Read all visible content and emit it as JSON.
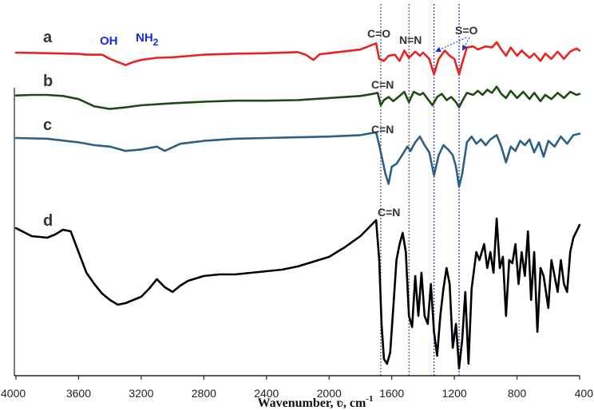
{
  "chart_data": {
    "type": "line",
    "title": "",
    "xlabel": "Wavenumber, ʋ, cm",
    "xlabel_sup": "-1",
    "ylabel": "",
    "xlim": [
      4000,
      400
    ],
    "x_reversed": true,
    "xticks": [
      4000,
      3600,
      3200,
      2800,
      2400,
      2000,
      1600,
      1200,
      800,
      400
    ],
    "grid": false,
    "legend": "none",
    "series": [
      {
        "name": "a",
        "color": "#e8231f",
        "points": [
          [
            4000,
            0.0
          ],
          [
            3800,
            -0.05
          ],
          [
            3600,
            -0.12
          ],
          [
            3550,
            -0.2
          ],
          [
            3450,
            -0.2
          ],
          [
            3400,
            -0.6
          ],
          [
            3300,
            -1.2
          ],
          [
            3250,
            -0.9
          ],
          [
            3200,
            -0.7
          ],
          [
            3100,
            -0.5
          ],
          [
            3000,
            -0.45
          ],
          [
            2800,
            -0.2
          ],
          [
            2600,
            -0.1
          ],
          [
            2400,
            -0.05
          ],
          [
            2200,
            0.05
          ],
          [
            2150,
            -0.2
          ],
          [
            2100,
            -0.7
          ],
          [
            2060,
            -0.15
          ],
          [
            2000,
            -0.05
          ],
          [
            1800,
            0.3
          ],
          [
            1750,
            0.6
          ],
          [
            1700,
            0.9
          ],
          [
            1680,
            -0.6
          ],
          [
            1650,
            -0.8
          ],
          [
            1620,
            -0.3
          ],
          [
            1580,
            -0.2
          ],
          [
            1550,
            -0.8
          ],
          [
            1520,
            0.2
          ],
          [
            1490,
            -0.5
          ],
          [
            1450,
            0.1
          ],
          [
            1420,
            -0.3
          ],
          [
            1400,
            0.0
          ],
          [
            1360,
            -0.6
          ],
          [
            1330,
            -2.1
          ],
          [
            1300,
            -0.6
          ],
          [
            1260,
            0.2
          ],
          [
            1230,
            -0.3
          ],
          [
            1200,
            -0.6
          ],
          [
            1170,
            -2.1
          ],
          [
            1150,
            -1.0
          ],
          [
            1120,
            0.5
          ],
          [
            1080,
            0.6
          ],
          [
            1050,
            0.3
          ],
          [
            1000,
            0.6
          ],
          [
            960,
            0.5
          ],
          [
            930,
            1.0
          ],
          [
            900,
            0.3
          ],
          [
            870,
            -0.3
          ],
          [
            840,
            0.5
          ],
          [
            800,
            -0.3
          ],
          [
            770,
            0.2
          ],
          [
            720,
            -0.5
          ],
          [
            690,
            -0.1
          ],
          [
            650,
            -0.8
          ],
          [
            620,
            -0.1
          ],
          [
            580,
            -0.6
          ],
          [
            540,
            0.1
          ],
          [
            500,
            -0.6
          ],
          [
            460,
            0.1
          ],
          [
            420,
            0.4
          ],
          [
            400,
            0.2
          ]
        ]
      },
      {
        "name": "b",
        "color": "#1f4a17",
        "points": [
          [
            4000,
            -0.05
          ],
          [
            3900,
            0.0
          ],
          [
            3800,
            0.0
          ],
          [
            3700,
            -0.1
          ],
          [
            3600,
            -0.4
          ],
          [
            3500,
            -1.1
          ],
          [
            3400,
            -1.35
          ],
          [
            3300,
            -1.2
          ],
          [
            3200,
            -1.0
          ],
          [
            3000,
            -0.8
          ],
          [
            2800,
            -0.65
          ],
          [
            2600,
            -0.55
          ],
          [
            2400,
            -0.55
          ],
          [
            2200,
            -0.5
          ],
          [
            2000,
            -0.3
          ],
          [
            1800,
            -0.1
          ],
          [
            1720,
            0.1
          ],
          [
            1690,
            0.2
          ],
          [
            1670,
            -1.0
          ],
          [
            1650,
            -0.5
          ],
          [
            1620,
            -0.2
          ],
          [
            1590,
            -0.6
          ],
          [
            1550,
            -0.1
          ],
          [
            1520,
            0.3
          ],
          [
            1490,
            -0.7
          ],
          [
            1460,
            0.3
          ],
          [
            1420,
            0.0
          ],
          [
            1400,
            0.2
          ],
          [
            1370,
            -0.4
          ],
          [
            1340,
            -1.0
          ],
          [
            1310,
            -0.2
          ],
          [
            1280,
            0.1
          ],
          [
            1250,
            -0.5
          ],
          [
            1220,
            -0.2
          ],
          [
            1190,
            -0.7
          ],
          [
            1170,
            -1.2
          ],
          [
            1150,
            -0.6
          ],
          [
            1120,
            0.2
          ],
          [
            1080,
            0.0
          ],
          [
            1050,
            0.4
          ],
          [
            1020,
            0.0
          ],
          [
            990,
            0.5
          ],
          [
            960,
            0.2
          ],
          [
            930,
            0.8
          ],
          [
            900,
            0.1
          ],
          [
            870,
            -0.3
          ],
          [
            840,
            0.4
          ],
          [
            800,
            -0.3
          ],
          [
            760,
            0.3
          ],
          [
            720,
            -0.4
          ],
          [
            690,
            0.2
          ],
          [
            650,
            -0.6
          ],
          [
            620,
            0.0
          ],
          [
            580,
            -0.4
          ],
          [
            540,
            0.2
          ],
          [
            500,
            -0.3
          ],
          [
            460,
            0.3
          ],
          [
            420,
            0.0
          ],
          [
            400,
            0.1
          ]
        ]
      },
      {
        "name": "c",
        "color": "#2d5f82",
        "points": [
          [
            4000,
            0.0
          ],
          [
            3800,
            -0.05
          ],
          [
            3600,
            -0.3
          ],
          [
            3500,
            -0.5
          ],
          [
            3400,
            -0.6
          ],
          [
            3300,
            -0.9
          ],
          [
            3200,
            -0.8
          ],
          [
            3100,
            -0.6
          ],
          [
            3050,
            -0.9
          ],
          [
            2950,
            -0.4
          ],
          [
            2800,
            -0.2
          ],
          [
            2600,
            -0.05
          ],
          [
            2400,
            0.0
          ],
          [
            2200,
            0.05
          ],
          [
            2000,
            0.1
          ],
          [
            1800,
            0.2
          ],
          [
            1700,
            0.4
          ],
          [
            1680,
            -0.5
          ],
          [
            1660,
            -1.5
          ],
          [
            1640,
            -2.5
          ],
          [
            1620,
            -3.2
          ],
          [
            1600,
            -2.0
          ],
          [
            1570,
            -1.8
          ],
          [
            1540,
            -1.3
          ],
          [
            1500,
            -0.6
          ],
          [
            1480,
            -0.9
          ],
          [
            1450,
            -0.3
          ],
          [
            1420,
            0.1
          ],
          [
            1390,
            -0.5
          ],
          [
            1360,
            -1.0
          ],
          [
            1330,
            -2.6
          ],
          [
            1300,
            -1.2
          ],
          [
            1270,
            -0.5
          ],
          [
            1240,
            -0.8
          ],
          [
            1210,
            -1.2
          ],
          [
            1190,
            -2.0
          ],
          [
            1170,
            -3.4
          ],
          [
            1150,
            -2.5
          ],
          [
            1120,
            -0.3
          ],
          [
            1090,
            0.1
          ],
          [
            1060,
            -0.4
          ],
          [
            1030,
            -0.1
          ],
          [
            1000,
            -0.5
          ],
          [
            970,
            -0.1
          ],
          [
            930,
            0.2
          ],
          [
            900,
            -0.6
          ],
          [
            870,
            -1.7
          ],
          [
            840,
            -0.6
          ],
          [
            810,
            -0.9
          ],
          [
            780,
            -0.2
          ],
          [
            750,
            -0.5
          ],
          [
            720,
            -0.1
          ],
          [
            690,
            -1.0
          ],
          [
            660,
            -0.3
          ],
          [
            630,
            -1.3
          ],
          [
            600,
            -0.2
          ],
          [
            560,
            -0.6
          ],
          [
            520,
            0.1
          ],
          [
            480,
            -0.4
          ],
          [
            440,
            0.2
          ],
          [
            400,
            0.3
          ]
        ]
      },
      {
        "name": "d",
        "color": "#000000",
        "points": [
          [
            4000,
            0.0
          ],
          [
            3900,
            -0.5
          ],
          [
            3800,
            -0.6
          ],
          [
            3750,
            -0.4
          ],
          [
            3700,
            -0.1
          ],
          [
            3650,
            -0.2
          ],
          [
            3600,
            -1.5
          ],
          [
            3550,
            -2.8
          ],
          [
            3500,
            -3.5
          ],
          [
            3450,
            -4.1
          ],
          [
            3400,
            -4.5
          ],
          [
            3350,
            -4.8
          ],
          [
            3300,
            -4.7
          ],
          [
            3250,
            -4.5
          ],
          [
            3200,
            -4.3
          ],
          [
            3150,
            -3.8
          ],
          [
            3100,
            -3.2
          ],
          [
            3050,
            -3.7
          ],
          [
            3000,
            -4.0
          ],
          [
            2950,
            -3.6
          ],
          [
            2900,
            -3.3
          ],
          [
            2800,
            -3.0
          ],
          [
            2700,
            -2.9
          ],
          [
            2600,
            -2.9
          ],
          [
            2500,
            -2.8
          ],
          [
            2400,
            -2.7
          ],
          [
            2300,
            -2.6
          ],
          [
            2200,
            -2.4
          ],
          [
            2100,
            -2.1
          ],
          [
            2000,
            -1.8
          ],
          [
            1900,
            -1.2
          ],
          [
            1800,
            -0.5
          ],
          [
            1750,
            0.0
          ],
          [
            1700,
            0.5
          ],
          [
            1680,
            -2.0
          ],
          [
            1665,
            -6.0
          ],
          [
            1650,
            -8.2
          ],
          [
            1630,
            -8.5
          ],
          [
            1610,
            -7.8
          ],
          [
            1590,
            -5.0
          ],
          [
            1570,
            -2.0
          ],
          [
            1550,
            -1.0
          ],
          [
            1530,
            -0.3
          ],
          [
            1510,
            -1.5
          ],
          [
            1490,
            -5.5
          ],
          [
            1470,
            -6.2
          ],
          [
            1450,
            -3.0
          ],
          [
            1430,
            -5.5
          ],
          [
            1410,
            -2.8
          ],
          [
            1390,
            -5.5
          ],
          [
            1370,
            -6.0
          ],
          [
            1350,
            -3.5
          ],
          [
            1330,
            -6.5
          ],
          [
            1310,
            -8.0
          ],
          [
            1290,
            -5.5
          ],
          [
            1270,
            -3.8
          ],
          [
            1250,
            -2.5
          ],
          [
            1230,
            -3.5
          ],
          [
            1210,
            -7.5
          ],
          [
            1190,
            -6.0
          ],
          [
            1170,
            -8.8
          ],
          [
            1150,
            -7.0
          ],
          [
            1130,
            -4.0
          ],
          [
            1110,
            -8.5
          ],
          [
            1090,
            -3.8
          ],
          [
            1060,
            -1.5
          ],
          [
            1040,
            -2.0
          ],
          [
            1010,
            -1.0
          ],
          [
            990,
            -2.5
          ],
          [
            970,
            -1.5
          ],
          [
            950,
            -2.8
          ],
          [
            930,
            0.6
          ],
          [
            910,
            -2.5
          ],
          [
            890,
            -1.8
          ],
          [
            870,
            -5.5
          ],
          [
            850,
            -2.0
          ],
          [
            830,
            -2.2
          ],
          [
            810,
            -1.0
          ],
          [
            790,
            -3.5
          ],
          [
            770,
            -1.5
          ],
          [
            750,
            -3.0
          ],
          [
            730,
            -0.2
          ],
          [
            710,
            -4.5
          ],
          [
            690,
            -1.5
          ],
          [
            670,
            -6.5
          ],
          [
            650,
            -2.5
          ],
          [
            630,
            -3.0
          ],
          [
            600,
            -5.0
          ],
          [
            580,
            -2.0
          ],
          [
            560,
            -3.0
          ],
          [
            540,
            -4.0
          ],
          [
            520,
            -2.0
          ],
          [
            500,
            -3.5
          ],
          [
            480,
            -4.0
          ],
          [
            460,
            -1.5
          ],
          [
            440,
            -0.6
          ],
          [
            420,
            -0.2
          ],
          [
            400,
            0.2
          ]
        ]
      }
    ],
    "series_labels": [
      "a",
      "b",
      "c",
      "d"
    ],
    "band_labels": [
      {
        "text": "OH",
        "color": "#1a2ad8"
      },
      {
        "text": "NH",
        "sub": "2",
        "color": "#1a2ad8"
      },
      {
        "text": "C=O",
        "color": "#333333"
      },
      {
        "text": "N=N",
        "color": "#333333"
      },
      {
        "text": "S=O",
        "color": "#333333"
      },
      {
        "text": "C=N",
        "color": "#333333"
      },
      {
        "text": "C=N",
        "color": "#333333"
      },
      {
        "text": "C=N",
        "color": "#333333"
      }
    ],
    "reference_lines": [
      {
        "x": 1670,
        "color": "#555555",
        "style": "dotted"
      },
      {
        "x": 1490,
        "color": "#555555",
        "style": "dotted"
      },
      {
        "x": 1330,
        "color": "#1a2ad8",
        "style": "dotted"
      },
      {
        "x": 1170,
        "color": "#1a2ad8",
        "style": "dotted"
      }
    ]
  }
}
